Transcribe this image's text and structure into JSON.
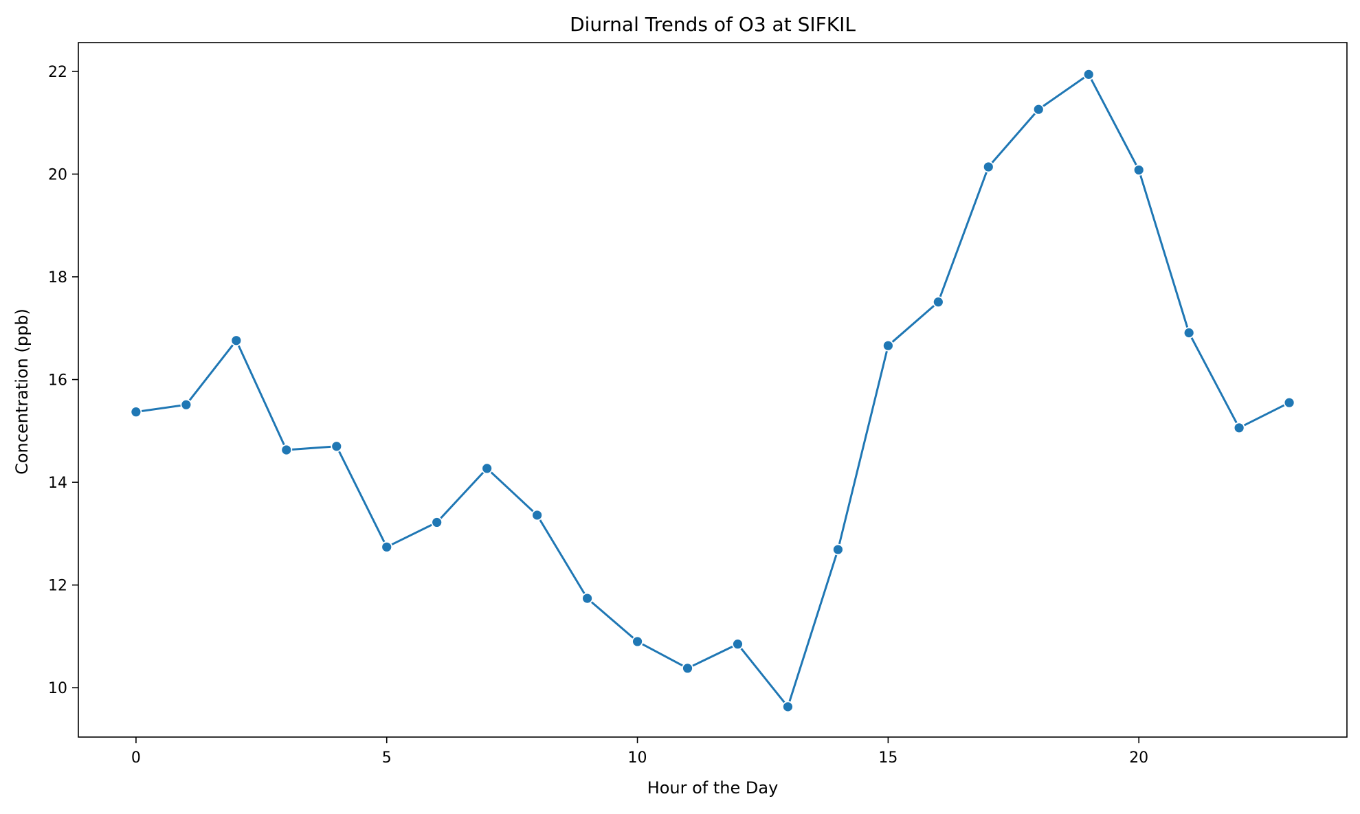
{
  "chart_data": {
    "type": "line",
    "title": "Diurnal Trends of O3 at SIFKIL",
    "xlabel": "Hour of the Day",
    "ylabel": "Concentration (ppb)",
    "xlim": [
      -1.15,
      24.15
    ],
    "ylim": [
      9.04,
      22.56
    ],
    "xticks": [
      0,
      5,
      10,
      15,
      20
    ],
    "yticks": [
      10,
      12,
      14,
      16,
      18,
      20,
      22
    ],
    "grid": false,
    "legend": "none",
    "series": [
      {
        "color": "#1f77b4",
        "marker": "circle",
        "x": [
          0,
          1,
          2,
          3,
          4,
          5,
          6,
          7,
          8,
          9,
          10,
          11,
          12,
          13,
          14,
          15,
          16,
          17,
          18,
          19,
          20,
          21,
          22,
          23
        ],
        "values": [
          15.37,
          15.51,
          16.76,
          14.63,
          14.7,
          12.74,
          13.22,
          14.27,
          13.36,
          11.74,
          10.9,
          10.38,
          10.85,
          9.63,
          12.69,
          16.66,
          17.51,
          20.14,
          21.26,
          21.94,
          20.08,
          16.91,
          15.06,
          15.55
        ]
      }
    ]
  }
}
